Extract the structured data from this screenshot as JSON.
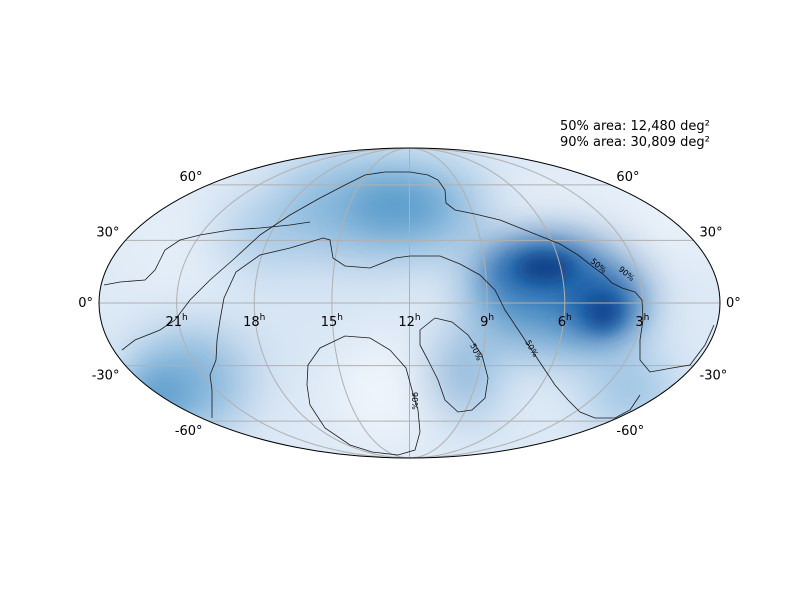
{
  "map": {
    "projection": "mollweide",
    "colormap": "Blues",
    "grid": true,
    "ra_labels": [
      "21",
      "18",
      "15",
      "12",
      "9",
      "6",
      "3"
    ],
    "ra_unit": "h",
    "dec_labels_left": [
      "60°",
      "30°",
      "0°",
      "-30°",
      "-60°"
    ],
    "dec_labels_right": [
      "60°",
      "30°",
      "0°",
      "-30°",
      "-60°"
    ],
    "contour_labels": {
      "fifty": "50%",
      "ninety": "90%"
    }
  },
  "areas": {
    "fifty": "50% area: 12,480 deg²",
    "ninety": "90% area: 30,809 deg²"
  }
}
